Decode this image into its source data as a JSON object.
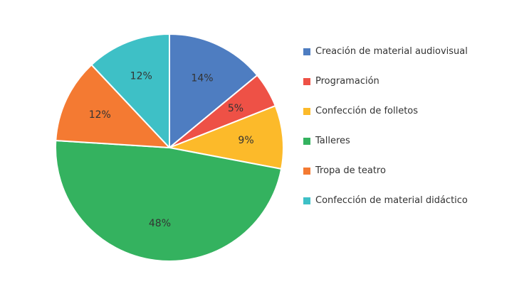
{
  "chart_data": {
    "type": "pie",
    "title": "",
    "categories": [
      "Creación de material audiovisual",
      "Programación",
      "Confección de folletos",
      "Talleres",
      "Tropa de teatro",
      "Confección de material didáctico"
    ],
    "values": [
      14,
      5,
      9,
      48,
      12,
      12
    ],
    "data_labels": [
      "14%",
      "5%",
      "9%",
      "48%",
      "12%",
      "12%"
    ],
    "colors": [
      "#4e7dc1",
      "#ee5146",
      "#fcba2a",
      "#34b25f",
      "#f47a32",
      "#3ec0c6"
    ],
    "start_angle": "top",
    "direction": "clockwise",
    "legend_placement": "right"
  }
}
